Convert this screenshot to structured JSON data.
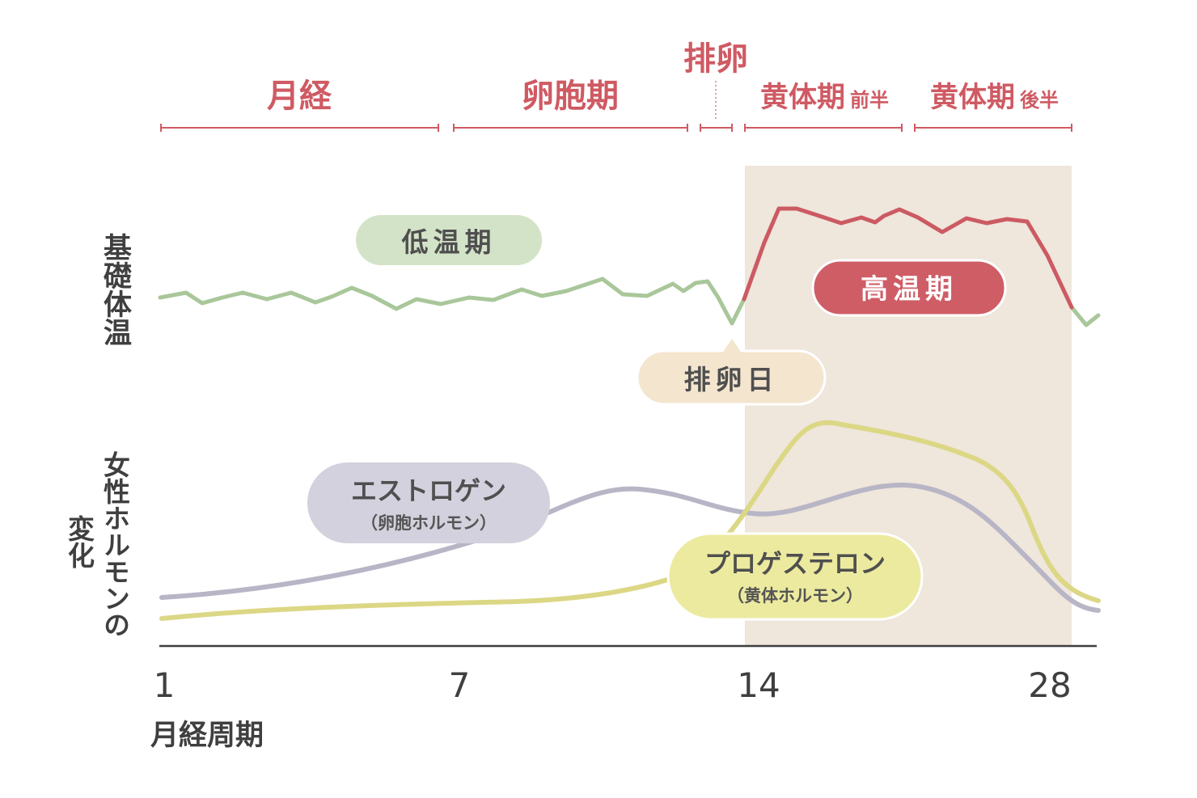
{
  "chart_data": {
    "type": "line",
    "x_ticks": [
      "1",
      "7",
      "14",
      "28"
    ],
    "x_label": "月経周期",
    "y_labels": {
      "bbt": "基礎体温",
      "hormone_lines": [
        "女性ホルモンの",
        "変化"
      ]
    },
    "phases": [
      {
        "label": "月経",
        "suffix": ""
      },
      {
        "label": "卵胞期",
        "suffix": ""
      },
      {
        "label": "排卵",
        "suffix": ""
      },
      {
        "label": "黄体期",
        "suffix": "前半"
      },
      {
        "label": "黄体期",
        "suffix": "後半"
      }
    ],
    "bubbles": {
      "low_temp": "低温期",
      "high_temp": "高温期",
      "ovulation_day": "排卵日",
      "estrogen": {
        "name": "エストロゲン",
        "sub": "（卵胞ホルモン）"
      },
      "progesterone": {
        "name": "プロゲステロン",
        "sub": "（黄体ホルモン）"
      }
    },
    "colors": {
      "phase_text": "#cf5a63",
      "low_temp_line": "#a9c79a",
      "high_temp_line": "#cc5a62",
      "estrogen_line": "#b8b5c6",
      "progesterone_line": "#dcd785",
      "luteal_band": "#efe6dc",
      "low_temp_bubble": "#d3e3c8",
      "high_temp_bubble": "#cf5d66",
      "ovulation_bubble": "#f4e5cf",
      "estrogen_bubble": "#d2d1dd",
      "progesterone_bubble": "#ecea9f",
      "axis": "#3f3f3f"
    }
  }
}
